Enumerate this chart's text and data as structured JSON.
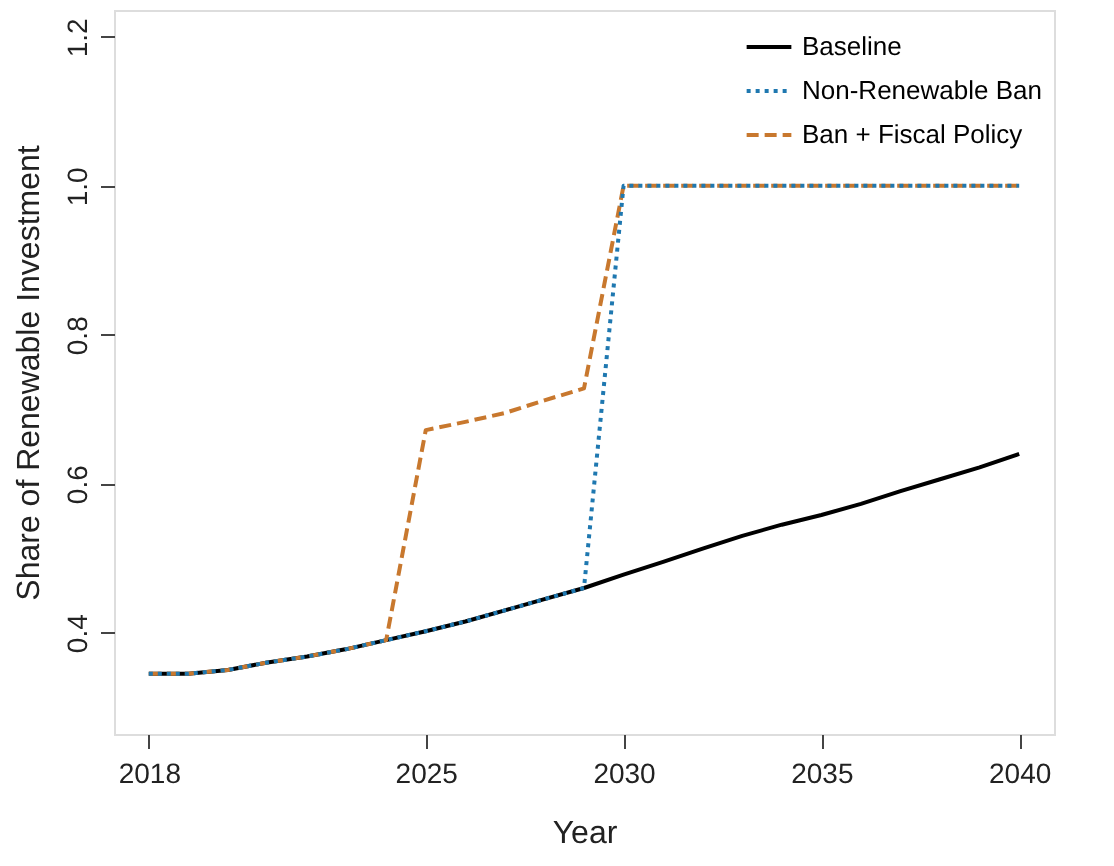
{
  "chart_data": {
    "type": "line",
    "xlabel": "Year",
    "ylabel": "Share of Renewable Investment",
    "x": [
      2018,
      2019,
      2020,
      2021,
      2022,
      2023,
      2024,
      2025,
      2026,
      2027,
      2028,
      2029,
      2030,
      2031,
      2032,
      2033,
      2034,
      2035,
      2036,
      2037,
      2038,
      2039,
      2040
    ],
    "series": [
      {
        "name": "Baseline",
        "color": "#000000",
        "line_style": "solid",
        "values": [
          0.345,
          0.345,
          0.35,
          0.36,
          0.368,
          0.378,
          0.39,
          0.402,
          0.415,
          0.43,
          0.445,
          0.46,
          0.478,
          0.495,
          0.513,
          0.53,
          0.545,
          0.558,
          0.573,
          0.59,
          0.606,
          0.622,
          0.64
        ]
      },
      {
        "name": "Non-Renewable Ban",
        "color": "#1f78b0",
        "line_style": "dotted",
        "values": [
          0.345,
          0.345,
          0.35,
          0.36,
          0.368,
          0.378,
          0.39,
          0.402,
          0.415,
          0.43,
          0.445,
          0.46,
          1.0,
          1.0,
          1.0,
          1.0,
          1.0,
          1.0,
          1.0,
          1.0,
          1.0,
          1.0,
          1.0
        ]
      },
      {
        "name": "Ban + Fiscal Policy",
        "color": "#c8782e",
        "line_style": "dashed",
        "values": [
          0.345,
          0.345,
          0.35,
          0.36,
          0.368,
          0.378,
          0.39,
          0.672,
          0.683,
          0.695,
          0.712,
          0.728,
          1.0,
          1.0,
          1.0,
          1.0,
          1.0,
          1.0,
          1.0,
          1.0,
          1.0,
          1.0,
          1.0
        ]
      }
    ],
    "xlim": [
      2017.12,
      2040.88
    ],
    "xticks": [
      2018,
      2025,
      2030,
      2035,
      2040
    ],
    "ylim": [
      0.264,
      1.236
    ],
    "yticks": [
      0.4,
      0.6,
      0.8,
      {
        "value": 1.0,
        "label": "1.0"
      },
      1.2
    ],
    "grid": false,
    "legend": "top right",
    "marker": "none"
  }
}
